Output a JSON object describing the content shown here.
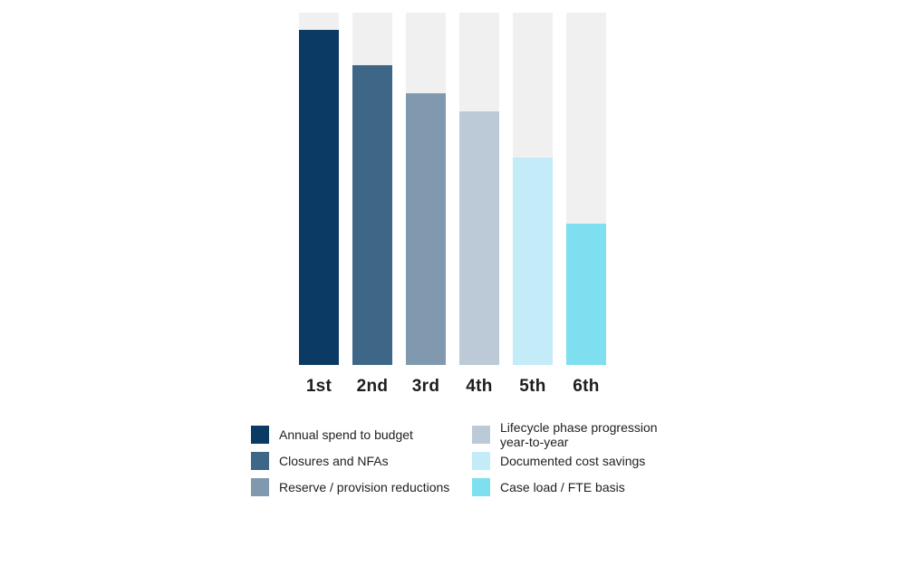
{
  "chart_data": {
    "type": "bar",
    "title": "",
    "xlabel": "",
    "ylabel": "",
    "categories": [
      "1st",
      "2nd",
      "3rd",
      "4th",
      "5th",
      "6th"
    ],
    "values": [
      95,
      85,
      77,
      72,
      59,
      40
    ],
    "value_unit": "percent of full track height (no numeric axis shown)",
    "ylim": [
      0,
      100
    ],
    "grid": false,
    "axes_shown": false,
    "track_color": "#F0F0F1",
    "colors": [
      "#0B3A64",
      "#3E6787",
      "#8099AE",
      "#BCCAD7",
      "#C3EBF8",
      "#7EDFF1"
    ],
    "label_color": "#1D1D1B",
    "legend_position": "bottom",
    "legend": {
      "columns": [
        {
          "items": [
            {
              "label_lines": [
                "Annual spend to budget"
              ],
              "color": "#0B3A64"
            },
            {
              "label_lines": [
                "Closures and NFAs"
              ],
              "color": "#3E6787"
            },
            {
              "label_lines": [
                "Reserve / provision reductions"
              ],
              "color": "#8099AE"
            }
          ]
        },
        {
          "items": [
            {
              "label_lines": [
                "Lifecycle phase progression",
                "year-to-year"
              ],
              "color": "#BCCAD7"
            },
            {
              "label_lines": [
                "Documented cost savings"
              ],
              "color": "#C3EBF8"
            },
            {
              "label_lines": [
                "Case load / FTE basis"
              ],
              "color": "#7EDFF1"
            }
          ]
        }
      ],
      "text_color": "#1F1F1F"
    }
  }
}
